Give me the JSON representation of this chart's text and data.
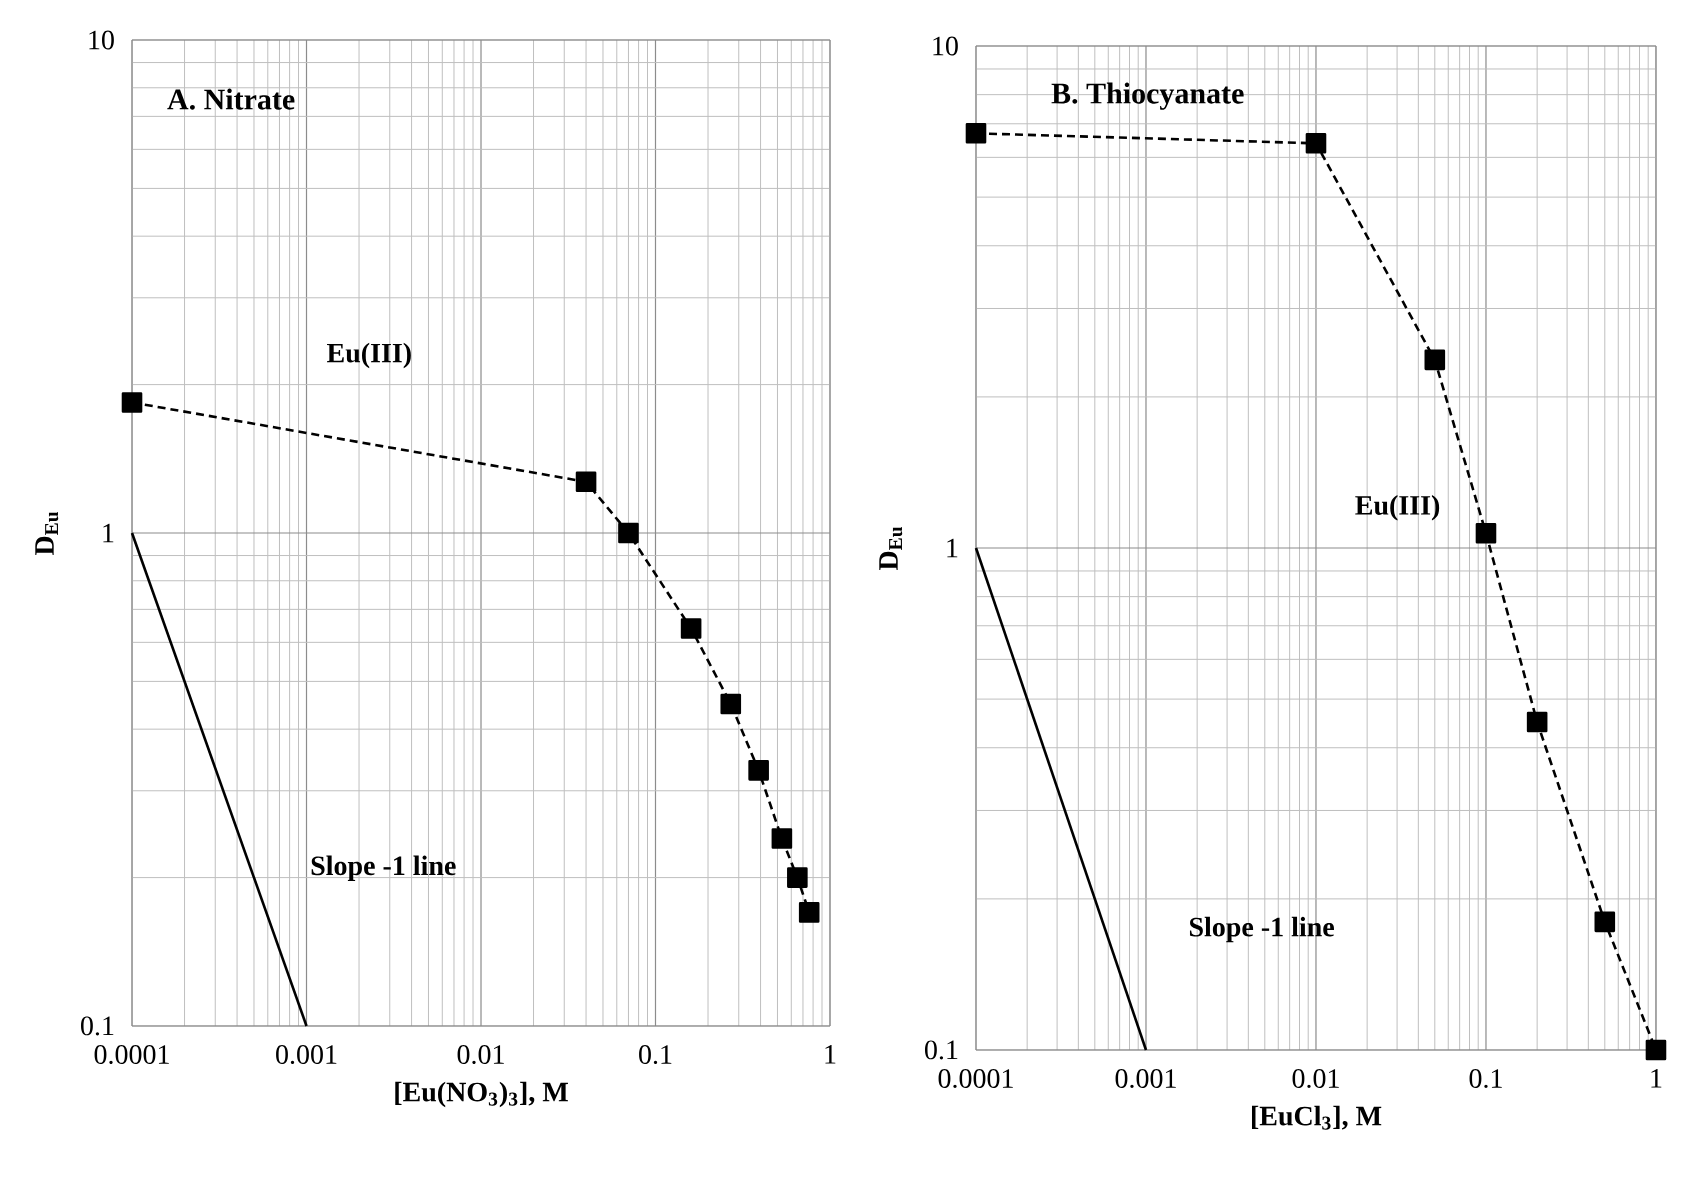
{
  "chart_data": [
    {
      "type": "line",
      "title": "A. Nitrate",
      "xlabel": "[Eu(NO$_{3}$)$_{3}$], M",
      "ylabel": "D$_{Eu}$",
      "log": "xy",
      "grid": true,
      "xlim": [
        0.0001,
        1
      ],
      "ylim": [
        0.1,
        10
      ],
      "xticks": [
        0.0001,
        0.001,
        0.01,
        0.1,
        1
      ],
      "yticks": [
        0.1,
        1,
        10
      ],
      "series": [
        {
          "name": "Eu(III)",
          "color": "#000000",
          "marker": "square",
          "line_style": "dashed",
          "x": [
            0.0001,
            0.04,
            0.07,
            0.16,
            0.27,
            0.39,
            0.53,
            0.65,
            0.76
          ],
          "values": [
            1.84,
            1.27,
            1.0,
            0.64,
            0.45,
            0.33,
            0.24,
            0.2,
            0.17
          ]
        },
        {
          "name": "Slope -1 line",
          "color": "#000000",
          "marker": "none",
          "line_style": "solid",
          "x": [
            0.0001,
            0.001
          ],
          "values": [
            1,
            0.1
          ]
        }
      ]
    },
    {
      "type": "line",
      "title": "B. Thiocyanate",
      "xlabel": "[EuCl$_{3}$], M",
      "ylabel": "D$_{Eu}$",
      "log": "xy",
      "grid": true,
      "xlim": [
        0.0001,
        1
      ],
      "ylim": [
        0.1,
        10
      ],
      "xticks": [
        0.0001,
        0.001,
        0.01,
        0.1,
        1
      ],
      "yticks": [
        0.1,
        1,
        10
      ],
      "series": [
        {
          "name": "Eu(III)",
          "color": "#000000",
          "marker": "square",
          "line_style": "dashed",
          "x": [
            0.0001,
            0.01,
            0.05,
            0.1,
            0.2,
            0.5,
            1
          ],
          "values": [
            6.7,
            6.4,
            2.37,
            1.07,
            0.45,
            0.18,
            0.1
          ]
        },
        {
          "name": "Slope -1 line",
          "color": "#000000",
          "marker": "none",
          "line_style": "solid",
          "x": [
            0.0001,
            0.001
          ],
          "values": [
            1,
            0.1
          ]
        }
      ]
    }
  ]
}
